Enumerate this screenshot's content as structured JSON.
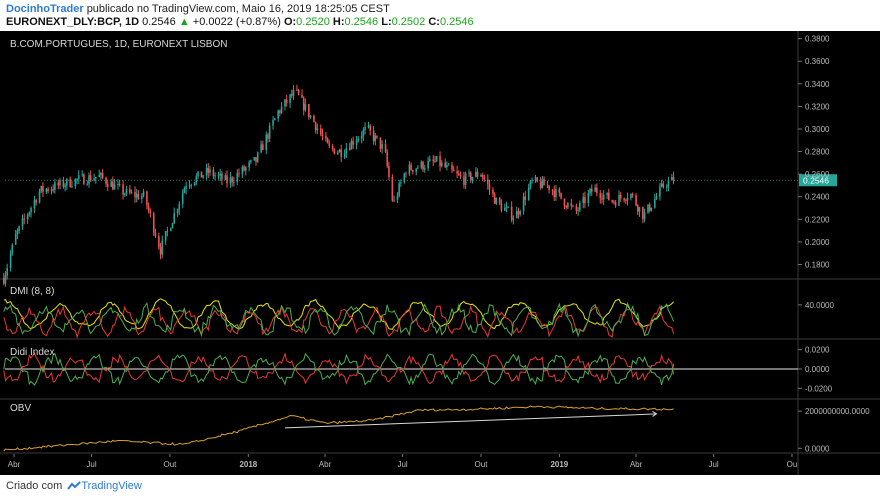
{
  "header": {
    "author": "DocinhoTrader",
    "published": "publicado no TradingView.com, Maio 16, 2019 18:25:05 CEST",
    "symbol": "EURONEXT_DLY:BCP, 1D",
    "last": "0.2546",
    "change": "+0.0022 (+0.87%)",
    "o_label": "O:",
    "o": "0.2520",
    "h_label": "H:",
    "h": "0.2546",
    "l_label": "L:",
    "l": "0.2502",
    "c_label": "C:",
    "c": "0.2546"
  },
  "footer": {
    "prefix": "Criado com",
    "brand": "TradingView"
  },
  "colors": {
    "background": "#000000",
    "up": "#26a69a",
    "down": "#ef5350",
    "dmi_plus": "#4caf50",
    "dmi_minus": "#e53935",
    "adx": "#e6e600",
    "didi_fast": "#4caf50",
    "didi_slow": "#e53935",
    "obv": "#d9a030",
    "last_price_tag": "#26a69a"
  },
  "chart_data": [
    {
      "type": "candlestick",
      "title": "B.COM.PORTUGUES, 1D, EURONEXT LISBON",
      "x_ticks": [
        "Abr",
        "Jul",
        "Out",
        "2018",
        "Abr",
        "Jul",
        "Out",
        "2019",
        "Abr",
        "Jul",
        "Ou"
      ],
      "y_ticks": [
        "0.3800",
        "0.3600",
        "0.3400",
        "0.3200",
        "0.3000",
        "0.2800",
        "0.2600",
        "0.2400",
        "0.2200",
        "0.2000",
        "0.1800"
      ],
      "ylim": [
        0.168,
        0.385
      ],
      "last_price": "0.2546",
      "anchors": [
        [
          "2017-03-20",
          0.168
        ],
        [
          "2017-04-03",
          0.205
        ],
        [
          "2017-05-01",
          0.245
        ],
        [
          "2017-06-15",
          0.255
        ],
        [
          "2017-07-10",
          0.258
        ],
        [
          "2017-08-10",
          0.243
        ],
        [
          "2017-09-01",
          0.24
        ],
        [
          "2017-09-20",
          0.193
        ],
        [
          "2017-10-20",
          0.252
        ],
        [
          "2017-11-15",
          0.262
        ],
        [
          "2017-12-08",
          0.253
        ],
        [
          "2018-01-10",
          0.272
        ],
        [
          "2018-02-05",
          0.315
        ],
        [
          "2018-02-25",
          0.333
        ],
        [
          "2018-03-20",
          0.305
        ],
        [
          "2018-04-05",
          0.283
        ],
        [
          "2018-04-20",
          0.28
        ],
        [
          "2018-05-20",
          0.3
        ],
        [
          "2018-06-10",
          0.281
        ],
        [
          "2018-06-20",
          0.233
        ],
        [
          "2018-07-05",
          0.264
        ],
        [
          "2018-08-10",
          0.271
        ],
        [
          "2018-09-10",
          0.255
        ],
        [
          "2018-10-01",
          0.261
        ],
        [
          "2018-10-20",
          0.234
        ],
        [
          "2018-11-10",
          0.222
        ],
        [
          "2018-11-30",
          0.253
        ],
        [
          "2018-12-20",
          0.249
        ],
        [
          "2019-01-20",
          0.226
        ],
        [
          "2019-02-10",
          0.247
        ],
        [
          "2019-03-05",
          0.236
        ],
        [
          "2019-03-25",
          0.243
        ],
        [
          "2019-04-10",
          0.223
        ],
        [
          "2019-04-25",
          0.24
        ],
        [
          "2019-05-05",
          0.252
        ],
        [
          "2019-05-16",
          0.2546
        ]
      ]
    },
    {
      "type": "line",
      "title": "DMI (8, 8)",
      "y_ticks": [
        "40.0000"
      ],
      "series": [
        {
          "role": "plus-di"
        },
        {
          "role": "minus-di"
        },
        {
          "role": "adx"
        }
      ]
    },
    {
      "type": "line",
      "title": "Didi Index",
      "y_ticks": [
        "0.0200",
        "0.0000",
        "-0.0200"
      ],
      "series": [
        {
          "role": "fast"
        },
        {
          "role": "slow"
        }
      ]
    },
    {
      "type": "line",
      "title": "OBV",
      "y_ticks": [
        "2000000000.0000",
        "0.0000"
      ],
      "series": [
        {
          "role": "obv"
        }
      ]
    }
  ]
}
